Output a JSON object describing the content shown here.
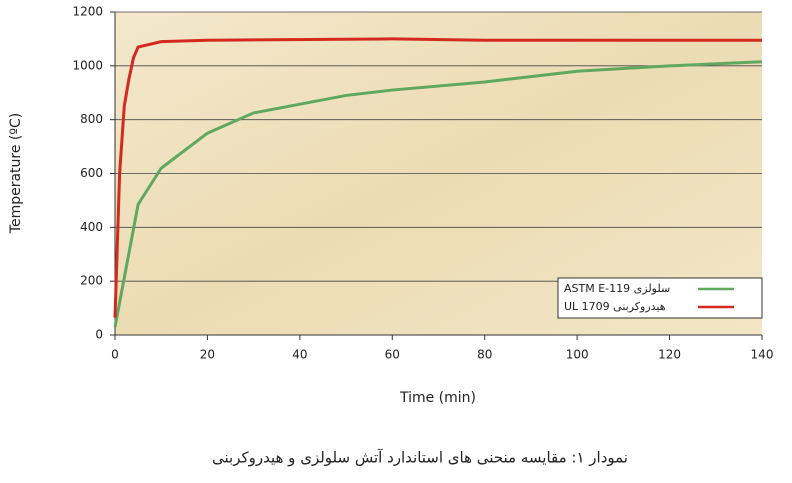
{
  "chart_data": {
    "type": "line",
    "caption": "نمودار ۱: مقایسه منحنی های استاندارد آتش سلولزی و هیدروکربنی",
    "x_label": "Time (min)",
    "y_label": "Temperature (ºC)",
    "series": [
      {
        "name": "ASTM E-119 سلولزی",
        "color": "#5fa860",
        "x": [
          0,
          5,
          10,
          20,
          30,
          50,
          60,
          80,
          100,
          120,
          140
        ],
        "values": [
          30,
          485,
          620,
          750,
          825,
          890,
          910,
          940,
          980,
          1000,
          1015
        ]
      },
      {
        "name": "UL 1709 هیدروکربنی",
        "color": "#d42a1e",
        "x": [
          0,
          1,
          2,
          3,
          4,
          5,
          10,
          20,
          60,
          80,
          140
        ],
        "values": [
          65,
          600,
          850,
          950,
          1030,
          1070,
          1090,
          1095,
          1100,
          1095,
          1095
        ]
      }
    ],
    "xlim": [
      0,
      140
    ],
    "xticks": [
      0,
      20,
      40,
      60,
      80,
      100,
      120,
      140
    ],
    "ylim": [
      0,
      1200
    ],
    "yticks": [
      0,
      200,
      400,
      600,
      800,
      1000,
      1200
    ],
    "grid": true,
    "legend": "lower right"
  }
}
